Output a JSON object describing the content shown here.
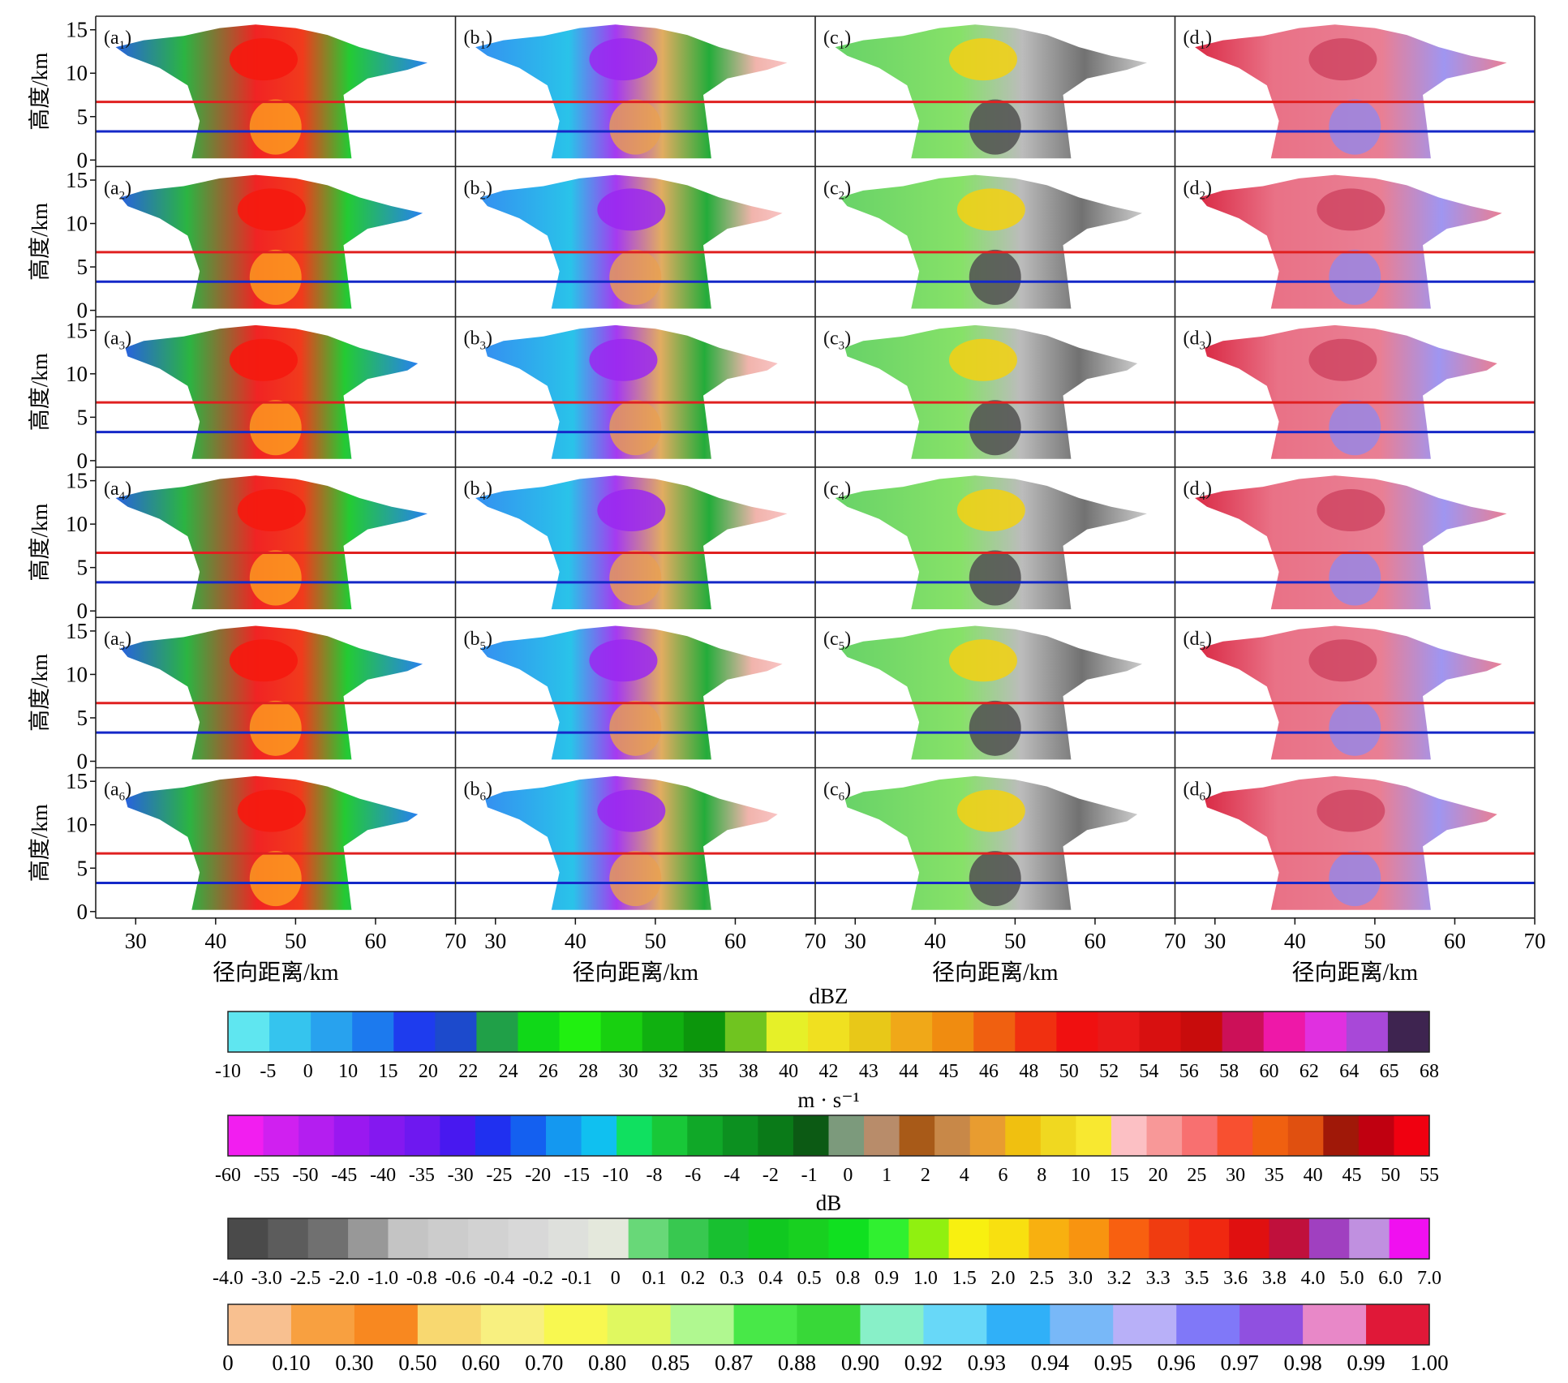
{
  "grid": {
    "rows": 6,
    "columns": [
      "a",
      "b",
      "c",
      "d"
    ],
    "y_axis_label": "高度/km",
    "x_axis_label": "径向距离/km",
    "y_ticks": [
      "15",
      "10",
      "5",
      "0"
    ],
    "x_ticks": [
      "30",
      "40",
      "50",
      "60",
      "70"
    ],
    "y_range_km": [
      0,
      16
    ],
    "x_range_km": [
      25,
      70
    ],
    "reference_lines": [
      {
        "color": "#e02020",
        "height_km": 6.7
      },
      {
        "color": "#1428c8",
        "height_km": 3.3
      }
    ]
  },
  "colorbars": [
    {
      "name": "reflectivity",
      "unit_label": "dBZ",
      "colors": [
        "#5fe6f0",
        "#35c4ee",
        "#28a2ee",
        "#1c7aee",
        "#1e3cee",
        "#1c4acc",
        "#20a048",
        "#10d818",
        "#20f010",
        "#18d010",
        "#10b010",
        "#0c960c",
        "#70c420",
        "#e6f028",
        "#f0e020",
        "#e8c818",
        "#f0a818",
        "#f08c10",
        "#f06010",
        "#f03010",
        "#f01010",
        "#e81818",
        "#d81010",
        "#c80c0c",
        "#cc1058",
        "#ee18a8",
        "#e030e0",
        "#a848d8",
        "#3e2450"
      ],
      "tick_labels": [
        "-10",
        "-5",
        "0",
        "10",
        "15",
        "20",
        "22",
        "24",
        "26",
        "28",
        "30",
        "32",
        "35",
        "38",
        "40",
        "42",
        "43",
        "44",
        "45",
        "46",
        "48",
        "50",
        "52",
        "54",
        "56",
        "58",
        "60",
        "62",
        "64",
        "65",
        "68"
      ]
    },
    {
      "name": "velocity",
      "unit_label": "m · s⁻¹",
      "colors": [
        "#f21ef0",
        "#d020f0",
        "#b41ef0",
        "#9a18f0",
        "#8418f0",
        "#6e18f0",
        "#4818f0",
        "#2030f0",
        "#1460f0",
        "#1498f0",
        "#10c0f0",
        "#10e060",
        "#18c838",
        "#10a828",
        "#0c9020",
        "#0a7a18",
        "#0c5a14",
        "#7c9a7c",
        "#b88c6a",
        "#a85a18",
        "#c88848",
        "#e89c30",
        "#f0c010",
        "#f0d820",
        "#f8e830",
        "#fcc0c4",
        "#f89898",
        "#f87070",
        "#f85030",
        "#f06010",
        "#e05010",
        "#a01808",
        "#c00010",
        "#f00010"
      ],
      "tick_labels": [
        "-60",
        "-55",
        "-50",
        "-45",
        "-40",
        "-35",
        "-30",
        "-25",
        "-20",
        "-15",
        "-10",
        "-8",
        "-6",
        "-4",
        "-2",
        "-1",
        "0",
        "1",
        "2",
        "4",
        "6",
        "8",
        "10",
        "15",
        "20",
        "25",
        "30",
        "35",
        "40",
        "45",
        "50",
        "55"
      ]
    },
    {
      "name": "differential-reflectivity",
      "unit_label": "dB",
      "colors": [
        "#4a4a4a",
        "#5c5c5c",
        "#707070",
        "#989898",
        "#c4c4c4",
        "#cccccc",
        "#d2d2d2",
        "#d8d8d8",
        "#dee0dc",
        "#e4e8dc",
        "#68d878",
        "#38c850",
        "#18c030",
        "#10c820",
        "#18d020",
        "#10e020",
        "#30f030",
        "#90f010",
        "#f8f010",
        "#f8e010",
        "#f8b010",
        "#f89410",
        "#f86010",
        "#f03c10",
        "#f02810",
        "#e01010",
        "#c0103c",
        "#a040c0",
        "#c090e0",
        "#f010f0"
      ],
      "tick_labels": [
        "-4.0",
        "-3.0",
        "-2.5",
        "-2.0",
        "-1.0",
        "-0.8",
        "-0.6",
        "-0.4",
        "-0.2",
        "-0.1",
        "0",
        "0.1",
        "0.2",
        "0.3",
        "0.4",
        "0.5",
        "0.8",
        "0.9",
        "1.0",
        "1.5",
        "2.0",
        "2.5",
        "3.0",
        "3.2",
        "3.3",
        "3.5",
        "3.6",
        "3.8",
        "4.0",
        "5.0",
        "6.0",
        "7.0"
      ]
    },
    {
      "name": "correlation-coefficient",
      "unit_label": "",
      "colors": [
        "#f8c090",
        "#f8a040",
        "#f88820",
        "#f8d870",
        "#f8f080",
        "#f8f850",
        "#e0f860",
        "#b0f890",
        "#48e848",
        "#38d838",
        "#88f0c8",
        "#68d8f8",
        "#30b0f8",
        "#78b8f8",
        "#b8b0f8",
        "#8078f8",
        "#9050e0",
        "#e888c8",
        "#e01838"
      ],
      "tick_labels": [
        "0",
        "0.10",
        "0.30",
        "0.50",
        "0.60",
        "0.70",
        "0.80",
        "0.85",
        "0.87",
        "0.88",
        "0.90",
        "0.92",
        "0.93",
        "0.94",
        "0.95",
        "0.96",
        "0.97",
        "0.98",
        "0.99",
        "1.00"
      ]
    }
  ]
}
